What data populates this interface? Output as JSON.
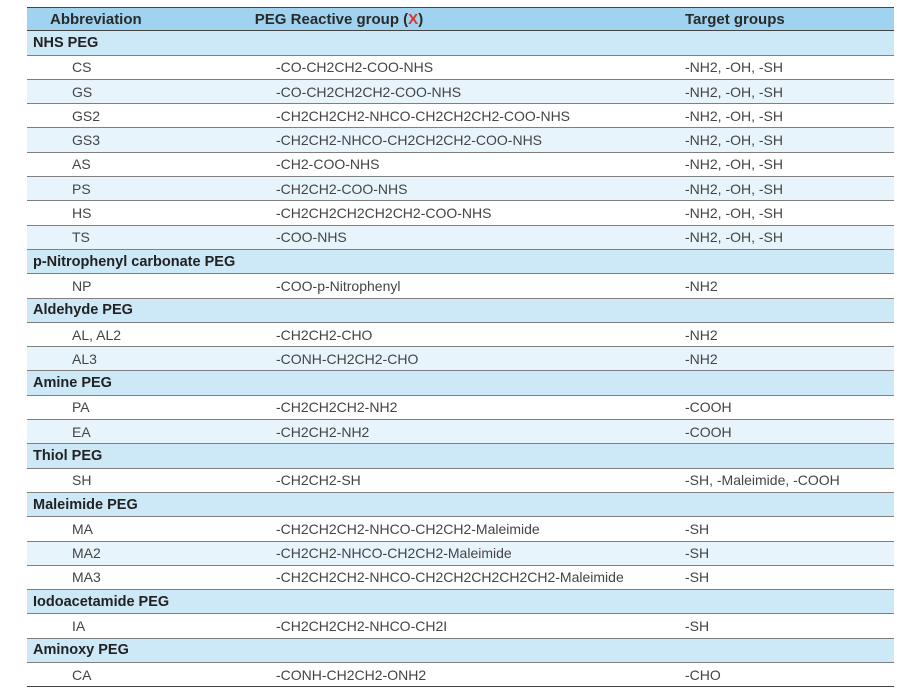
{
  "header": {
    "col1": "Abbreviation",
    "col2_prefix": "PEG Reactive group (",
    "col2_x": "X",
    "col2_suffix": ")",
    "col3": "Target groups"
  },
  "rows": [
    {
      "type": "section",
      "label": "NHS PEG"
    },
    {
      "type": "data",
      "abbr": "CS",
      "group": "-CO-CH2CH2-COO-NHS",
      "target": "-NH2, -OH, -SH"
    },
    {
      "type": "data",
      "abbr": "GS",
      "group": "-CO-CH2CH2CH2-COO-NHS",
      "target": "-NH2, -OH, -SH"
    },
    {
      "type": "data",
      "abbr": "GS2",
      "group": "-CH2CH2CH2-NHCO-CH2CH2CH2-COO-NHS",
      "target": "-NH2, -OH, -SH"
    },
    {
      "type": "data",
      "abbr": "GS3",
      "group": "-CH2CH2-NHCO-CH2CH2CH2-COO-NHS",
      "target": "-NH2, -OH, -SH"
    },
    {
      "type": "data",
      "abbr": "AS",
      "group": "-CH2-COO-NHS",
      "target": "-NH2, -OH, -SH"
    },
    {
      "type": "data",
      "abbr": "PS",
      "group": "-CH2CH2-COO-NHS",
      "target": "-NH2, -OH, -SH"
    },
    {
      "type": "data",
      "abbr": "HS",
      "group": "-CH2CH2CH2CH2CH2-COO-NHS",
      "target": "-NH2, -OH, -SH"
    },
    {
      "type": "data",
      "abbr": "TS",
      "group": "-COO-NHS",
      "target": "-NH2, -OH, -SH"
    },
    {
      "type": "section",
      "label": "p-Nitrophenyl carbonate PEG"
    },
    {
      "type": "data",
      "abbr": "NP",
      "group": "-COO-p-Nitrophenyl",
      "target": "-NH2"
    },
    {
      "type": "section",
      "label": "Aldehyde PEG"
    },
    {
      "type": "data",
      "abbr": "AL, AL2",
      "group": "-CH2CH2-CHO",
      "target": "-NH2"
    },
    {
      "type": "data",
      "abbr": "AL3",
      "group": "-CONH-CH2CH2-CHO",
      "target": "-NH2"
    },
    {
      "type": "section",
      "label": "Amine PEG"
    },
    {
      "type": "data",
      "abbr": "PA",
      "group": "-CH2CH2CH2-NH2",
      "target": "-COOH"
    },
    {
      "type": "data",
      "abbr": "EA",
      "group": "-CH2CH2-NH2",
      "target": "-COOH"
    },
    {
      "type": "section",
      "label": "Thiol PEG"
    },
    {
      "type": "data",
      "abbr": "SH",
      "group": "-CH2CH2-SH",
      "target": "-SH, -Maleimide, -COOH"
    },
    {
      "type": "section",
      "label": "Maleimide PEG"
    },
    {
      "type": "data",
      "abbr": "MA",
      "group": "-CH2CH2CH2-NHCO-CH2CH2-Maleimide",
      "target": "-SH"
    },
    {
      "type": "data",
      "abbr": "MA2",
      "group": "-CH2CH2-NHCO-CH2CH2-Maleimide",
      "target": "-SH"
    },
    {
      "type": "data",
      "abbr": "MA3",
      "group": "-CH2CH2CH2-NHCO-CH2CH2CH2CH2CH2-Maleimide",
      "target": "-SH"
    },
    {
      "type": "section",
      "label": "Iodoacetamide PEG"
    },
    {
      "type": "data",
      "abbr": "IA",
      "group": "-CH2CH2CH2-NHCO-CH2I",
      "target": "-SH"
    },
    {
      "type": "section",
      "label": "Aminoxy PEG"
    },
    {
      "type": "data",
      "abbr": "CA",
      "group": "-CONH-CH2CH2-ONH2",
      "target": "-CHO"
    }
  ]
}
